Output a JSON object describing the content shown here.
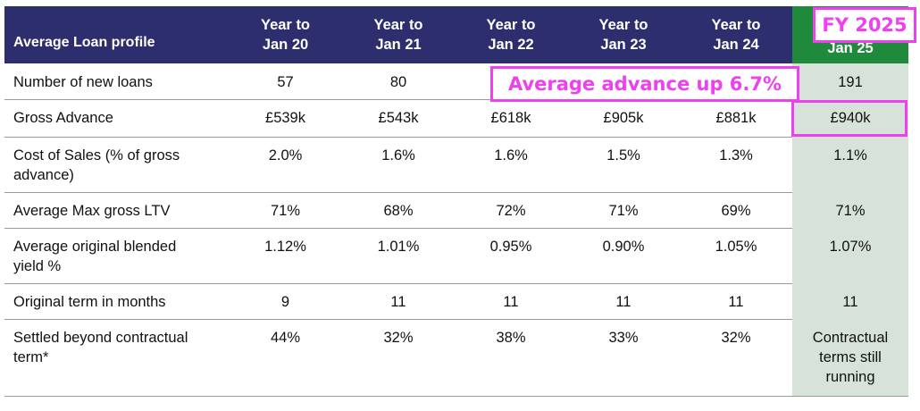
{
  "table": {
    "header": {
      "label": "Average Loan profile",
      "columns": [
        "Year to\nJan 20",
        "Year to\nJan 21",
        "Year to\nJan 22",
        "Year to\nJan 23",
        "Year to\nJan 24",
        "Jan 25"
      ]
    },
    "rows": [
      {
        "label": "Number of new loans",
        "values": [
          "57",
          "80",
          "",
          "",
          "",
          "191"
        ]
      },
      {
        "label": "Gross Advance",
        "values": [
          "£539k",
          "£543k",
          "£618k",
          "£905k",
          "£881k",
          "£940k"
        ]
      },
      {
        "label": "Cost of Sales (% of gross\nadvance)",
        "values": [
          "2.0%",
          "1.6%",
          "1.6%",
          "1.5%",
          "1.3%",
          "1.1%"
        ]
      },
      {
        "label": "Average Max gross LTV",
        "values": [
          "71%",
          "68%",
          "72%",
          "71%",
          "69%",
          "71%"
        ]
      },
      {
        "label": "Average original blended\nyield %",
        "values": [
          "1.12%",
          "1.01%",
          "0.95%",
          "0.90%",
          "1.05%",
          "1.07%"
        ]
      },
      {
        "label": "Original term in months",
        "values": [
          "9",
          "11",
          "11",
          "11",
          "11",
          "11"
        ]
      },
      {
        "label": "Settled beyond contractual\nterm*",
        "values": [
          "44%",
          "32%",
          "38%",
          "33%",
          "32%",
          "Contractual\nterms still\nrunning"
        ]
      }
    ]
  },
  "annotations": {
    "fy_label": "FY 2025",
    "advance_note": "Average advance up 6.7%"
  },
  "colors": {
    "header_bg": "#2c2e6e",
    "highlight_header_bg": "#1f8a3c",
    "highlight_column_bg": "#d7e2d8",
    "annotation": "#ee40ee"
  }
}
